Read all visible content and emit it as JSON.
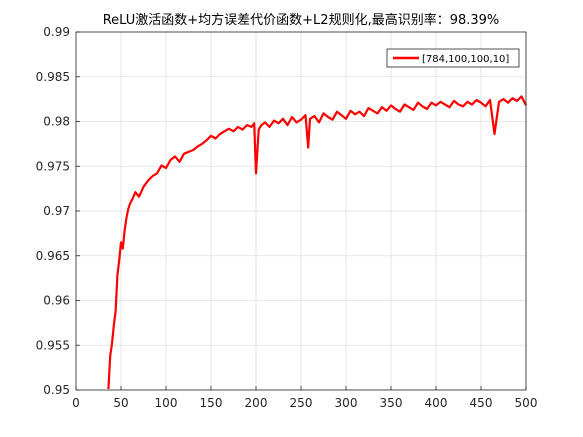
{
  "chart_data": {
    "type": "line",
    "title": "ReLU激活函数+均方误差代价函数+L2规则化,最高识别率：98.39%",
    "xlabel": "",
    "ylabel": "",
    "xlim": [
      0,
      500
    ],
    "ylim": [
      0.95,
      0.99
    ],
    "xticks": [
      "0",
      "50",
      "100",
      "150",
      "200",
      "250",
      "300",
      "350",
      "400",
      "450",
      "500"
    ],
    "yticks": [
      "0.95",
      "0.955",
      "0.96",
      "0.965",
      "0.97",
      "0.975",
      "0.98",
      "0.985",
      "0.99"
    ],
    "grid": true,
    "legend_position": "top-right",
    "series": [
      {
        "name": "[784,100,100,10]",
        "color": "#ff0000",
        "x": [
          36,
          38,
          40,
          42,
          44,
          46,
          48,
          50,
          52,
          54,
          56,
          58,
          60,
          63,
          66,
          70,
          75,
          80,
          85,
          90,
          95,
          100,
          105,
          110,
          115,
          120,
          125,
          130,
          135,
          140,
          145,
          150,
          155,
          160,
          165,
          170,
          175,
          180,
          185,
          190,
          195,
          198,
          200,
          203,
          206,
          210,
          215,
          220,
          225,
          230,
          235,
          240,
          245,
          250,
          255,
          258,
          260,
          265,
          270,
          275,
          280,
          285,
          290,
          295,
          300,
          305,
          310,
          315,
          320,
          325,
          330,
          335,
          340,
          345,
          350,
          355,
          360,
          365,
          370,
          375,
          380,
          385,
          390,
          395,
          400,
          405,
          410,
          415,
          420,
          425,
          430,
          435,
          440,
          445,
          450,
          455,
          460,
          465,
          470,
          475,
          480,
          485,
          490,
          495,
          500
        ],
        "values": [
          0.9501,
          0.9538,
          0.9552,
          0.9572,
          0.9588,
          0.9628,
          0.9645,
          0.9665,
          0.9658,
          0.9678,
          0.9692,
          0.9702,
          0.9708,
          0.9714,
          0.9721,
          0.9716,
          0.9727,
          0.9734,
          0.9739,
          0.9742,
          0.9751,
          0.9748,
          0.9757,
          0.9761,
          0.9755,
          0.9764,
          0.9766,
          0.9768,
          0.9772,
          0.9775,
          0.9779,
          0.9784,
          0.9781,
          0.9786,
          0.9789,
          0.9792,
          0.9789,
          0.9794,
          0.9791,
          0.9796,
          0.9794,
          0.9798,
          0.9742,
          0.9791,
          0.9796,
          0.9799,
          0.9794,
          0.9801,
          0.9798,
          0.9803,
          0.9796,
          0.9805,
          0.9799,
          0.9802,
          0.9807,
          0.9771,
          0.9803,
          0.9806,
          0.9799,
          0.9809,
          0.9805,
          0.9802,
          0.9811,
          0.9807,
          0.9803,
          0.9812,
          0.9808,
          0.9811,
          0.9806,
          0.9815,
          0.9812,
          0.9809,
          0.9816,
          0.9812,
          0.9818,
          0.9814,
          0.9811,
          0.9819,
          0.9816,
          0.9813,
          0.9821,
          0.9817,
          0.9814,
          0.9821,
          0.9818,
          0.9822,
          0.9819,
          0.9816,
          0.9823,
          0.9819,
          0.9817,
          0.9822,
          0.9819,
          0.9824,
          0.9821,
          0.9817,
          0.9824,
          0.9786,
          0.9822,
          0.9825,
          0.9821,
          0.9826,
          0.9823,
          0.9828,
          0.9818
        ]
      }
    ]
  }
}
